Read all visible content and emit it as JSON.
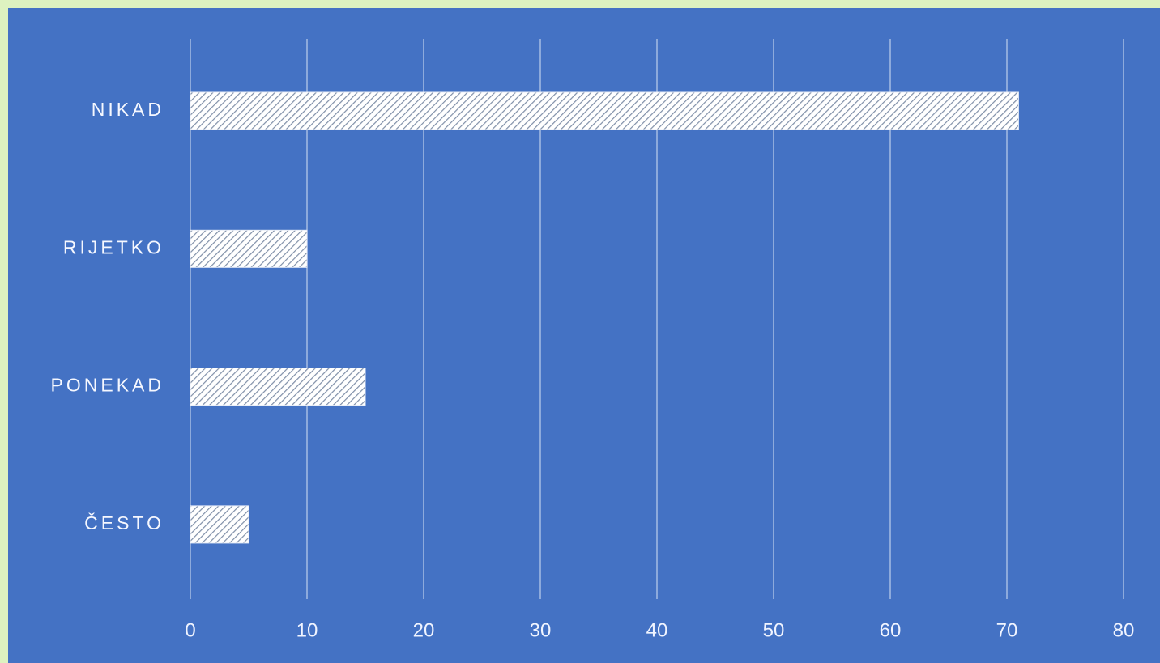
{
  "colors": {
    "outer_background": "#ddf2c0",
    "plot_background": "#4472c4",
    "gridline": "#dbe5f5",
    "bar_fill": "#ffffff",
    "bar_hatch": "#7f8fa8",
    "text": "#f0f4ff"
  },
  "chart_data": {
    "type": "bar",
    "orientation": "horizontal",
    "title": "",
    "xlabel": "",
    "ylabel": "",
    "categories": [
      "NIKAD",
      "RIJETKO",
      "PONEKAD",
      "ČESTO"
    ],
    "values": [
      71,
      10,
      15,
      5
    ],
    "xlim": [
      0,
      80
    ],
    "x_ticks": [
      "0",
      "10",
      "20",
      "30",
      "40",
      "50",
      "60",
      "70",
      "80"
    ],
    "grid": "vertical",
    "legend": "none",
    "bar_style": "white diagonal hatch"
  }
}
